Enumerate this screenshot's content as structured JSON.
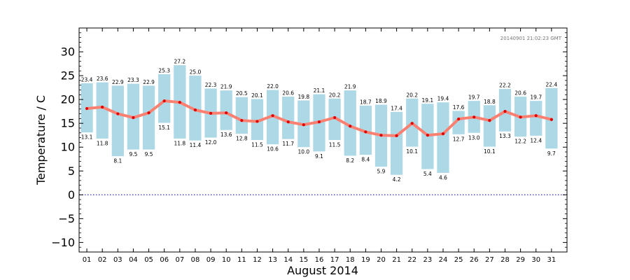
{
  "chart_data": {
    "type": "bar",
    "title": "",
    "xlabel": "August 2014",
    "ylabel": "Temperature / C",
    "timestamp": "20140901 21:02:23 GMT",
    "ylim": [
      -12,
      35
    ],
    "yticks": [
      -10,
      -5,
      0,
      5,
      10,
      15,
      20,
      25,
      30
    ],
    "ytick_labels": [
      "−10",
      "−5",
      "0",
      "5",
      "10",
      "15",
      "20",
      "25",
      "30"
    ],
    "grid": false,
    "zero_line": true,
    "categories": [
      "01",
      "02",
      "03",
      "04",
      "05",
      "06",
      "07",
      "08",
      "09",
      "10",
      "11",
      "12",
      "13",
      "14",
      "15",
      "16",
      "17",
      "18",
      "19",
      "20",
      "21",
      "22",
      "23",
      "24",
      "25",
      "26",
      "27",
      "28",
      "29",
      "30",
      "31"
    ],
    "series": [
      {
        "kind": "range-bar",
        "max": [
          23.4,
          23.6,
          22.9,
          23.3,
          22.9,
          25.3,
          27.2,
          25.0,
          22.3,
          21.9,
          20.5,
          20.1,
          22.0,
          20.6,
          19.8,
          21.1,
          20.2,
          21.9,
          18.7,
          18.9,
          17.4,
          20.2,
          19.1,
          19.4,
          17.6,
          19.7,
          18.8,
          22.2,
          20.6,
          19.7,
          22.4
        ],
        "min": [
          13.1,
          11.8,
          8.1,
          9.5,
          9.5,
          15.1,
          11.8,
          11.4,
          12.0,
          13.6,
          12.8,
          11.5,
          10.6,
          11.7,
          10.0,
          9.1,
          11.5,
          8.2,
          8.4,
          5.9,
          4.2,
          10.1,
          5.4,
          4.6,
          12.7,
          13.0,
          10.1,
          13.3,
          12.2,
          12.4,
          9.7
        ],
        "max_labels": [
          "23.4",
          "23.6",
          "22.9",
          "23.3",
          "22.9",
          "25.3",
          "27.2",
          "25.0",
          "22.3",
          "21.9",
          "20.5",
          "20.1",
          "22.0",
          "20.6",
          "19.8",
          "21.1",
          "20.2",
          "21.9",
          "18.7",
          "18.9",
          "17.4",
          "20.2",
          "19.1",
          "19.4",
          "17.6",
          "19.7",
          "18.8",
          "22.2",
          "20.6",
          "19.7",
          "22.4"
        ],
        "min_labels": [
          "13.1",
          "11.8",
          "8.1",
          "9.5",
          "9.5",
          "15.1",
          "11.8",
          "11.4",
          "12.0",
          "13.6",
          "12.8",
          "11.5",
          "10.6",
          "11.7",
          "10.0",
          "9.1",
          "11.5",
          "8.2",
          "8.4",
          "5.9",
          "4.2",
          "10.1",
          "5.4",
          "4.6",
          "12.7",
          "13.0",
          "10.1",
          "13.3",
          "12.2",
          "12.4",
          "9.7"
        ],
        "color": "#add8e6"
      },
      {
        "kind": "line",
        "values": [
          18.1,
          18.4,
          17.0,
          16.2,
          17.2,
          19.7,
          19.4,
          17.8,
          17.1,
          17.2,
          15.6,
          15.4,
          16.6,
          15.3,
          14.7,
          15.3,
          16.2,
          14.4,
          13.2,
          12.5,
          12.4,
          15.0,
          12.5,
          12.8,
          15.9,
          16.3,
          15.6,
          17.5,
          16.3,
          16.6,
          15.8
        ],
        "line_color": "#fa8072",
        "marker_color": "#dd0000"
      }
    ],
    "zero_line_color": "#0000cc"
  }
}
